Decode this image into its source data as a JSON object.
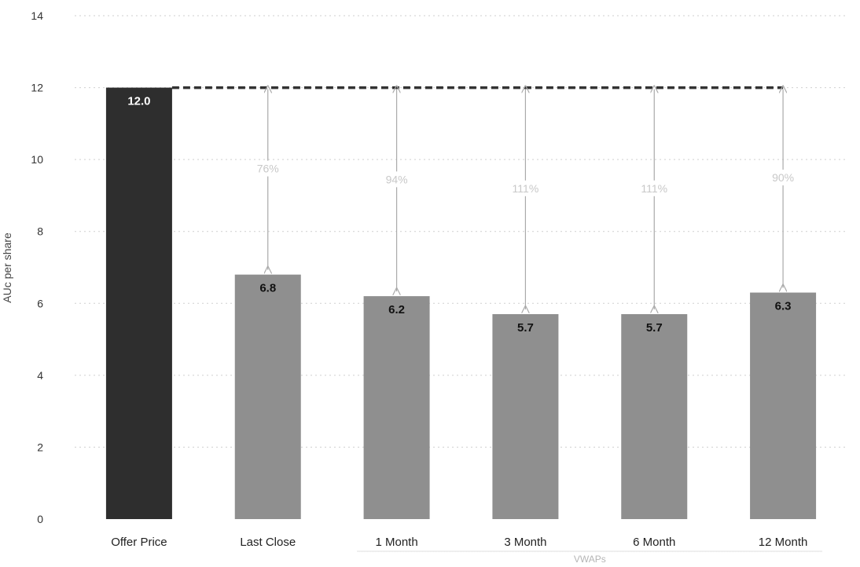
{
  "chart_data": {
    "type": "bar",
    "title": "",
    "xlabel": "",
    "ylabel": "AUc per share",
    "ylim": [
      0,
      14
    ],
    "yticks": [
      0,
      2,
      4,
      6,
      8,
      10,
      12,
      14
    ],
    "grid": true,
    "categories": [
      "Offer Price",
      "Last Close",
      "1 Month",
      "3 Month",
      "6 Month",
      "12 Month"
    ],
    "values": [
      12.0,
      6.8,
      6.2,
      5.7,
      5.7,
      6.3
    ],
    "data_labels": [
      "12.0",
      "6.8",
      "6.2",
      "5.7",
      "5.7",
      "6.3"
    ],
    "reference_line": {
      "value": 12.0,
      "style": "dashed"
    },
    "premiums": [
      {
        "category": "Last Close",
        "label": "76%"
      },
      {
        "category": "1 Month",
        "label": "94%"
      },
      {
        "category": "3 Month",
        "label": "111%"
      },
      {
        "category": "6 Month",
        "label": "111%"
      },
      {
        "category": "12 Month",
        "label": "90%"
      }
    ],
    "category_group": {
      "label": "VWAPs",
      "categories": [
        "1 Month",
        "3 Month",
        "6 Month",
        "12 Month"
      ]
    },
    "colors": {
      "offer_bar": "#2e2e2e",
      "other_bars": "#8f8f8f",
      "reference_line": "#333333",
      "arrows": "#aaaaaa",
      "grid": "#cfcfcf"
    }
  }
}
